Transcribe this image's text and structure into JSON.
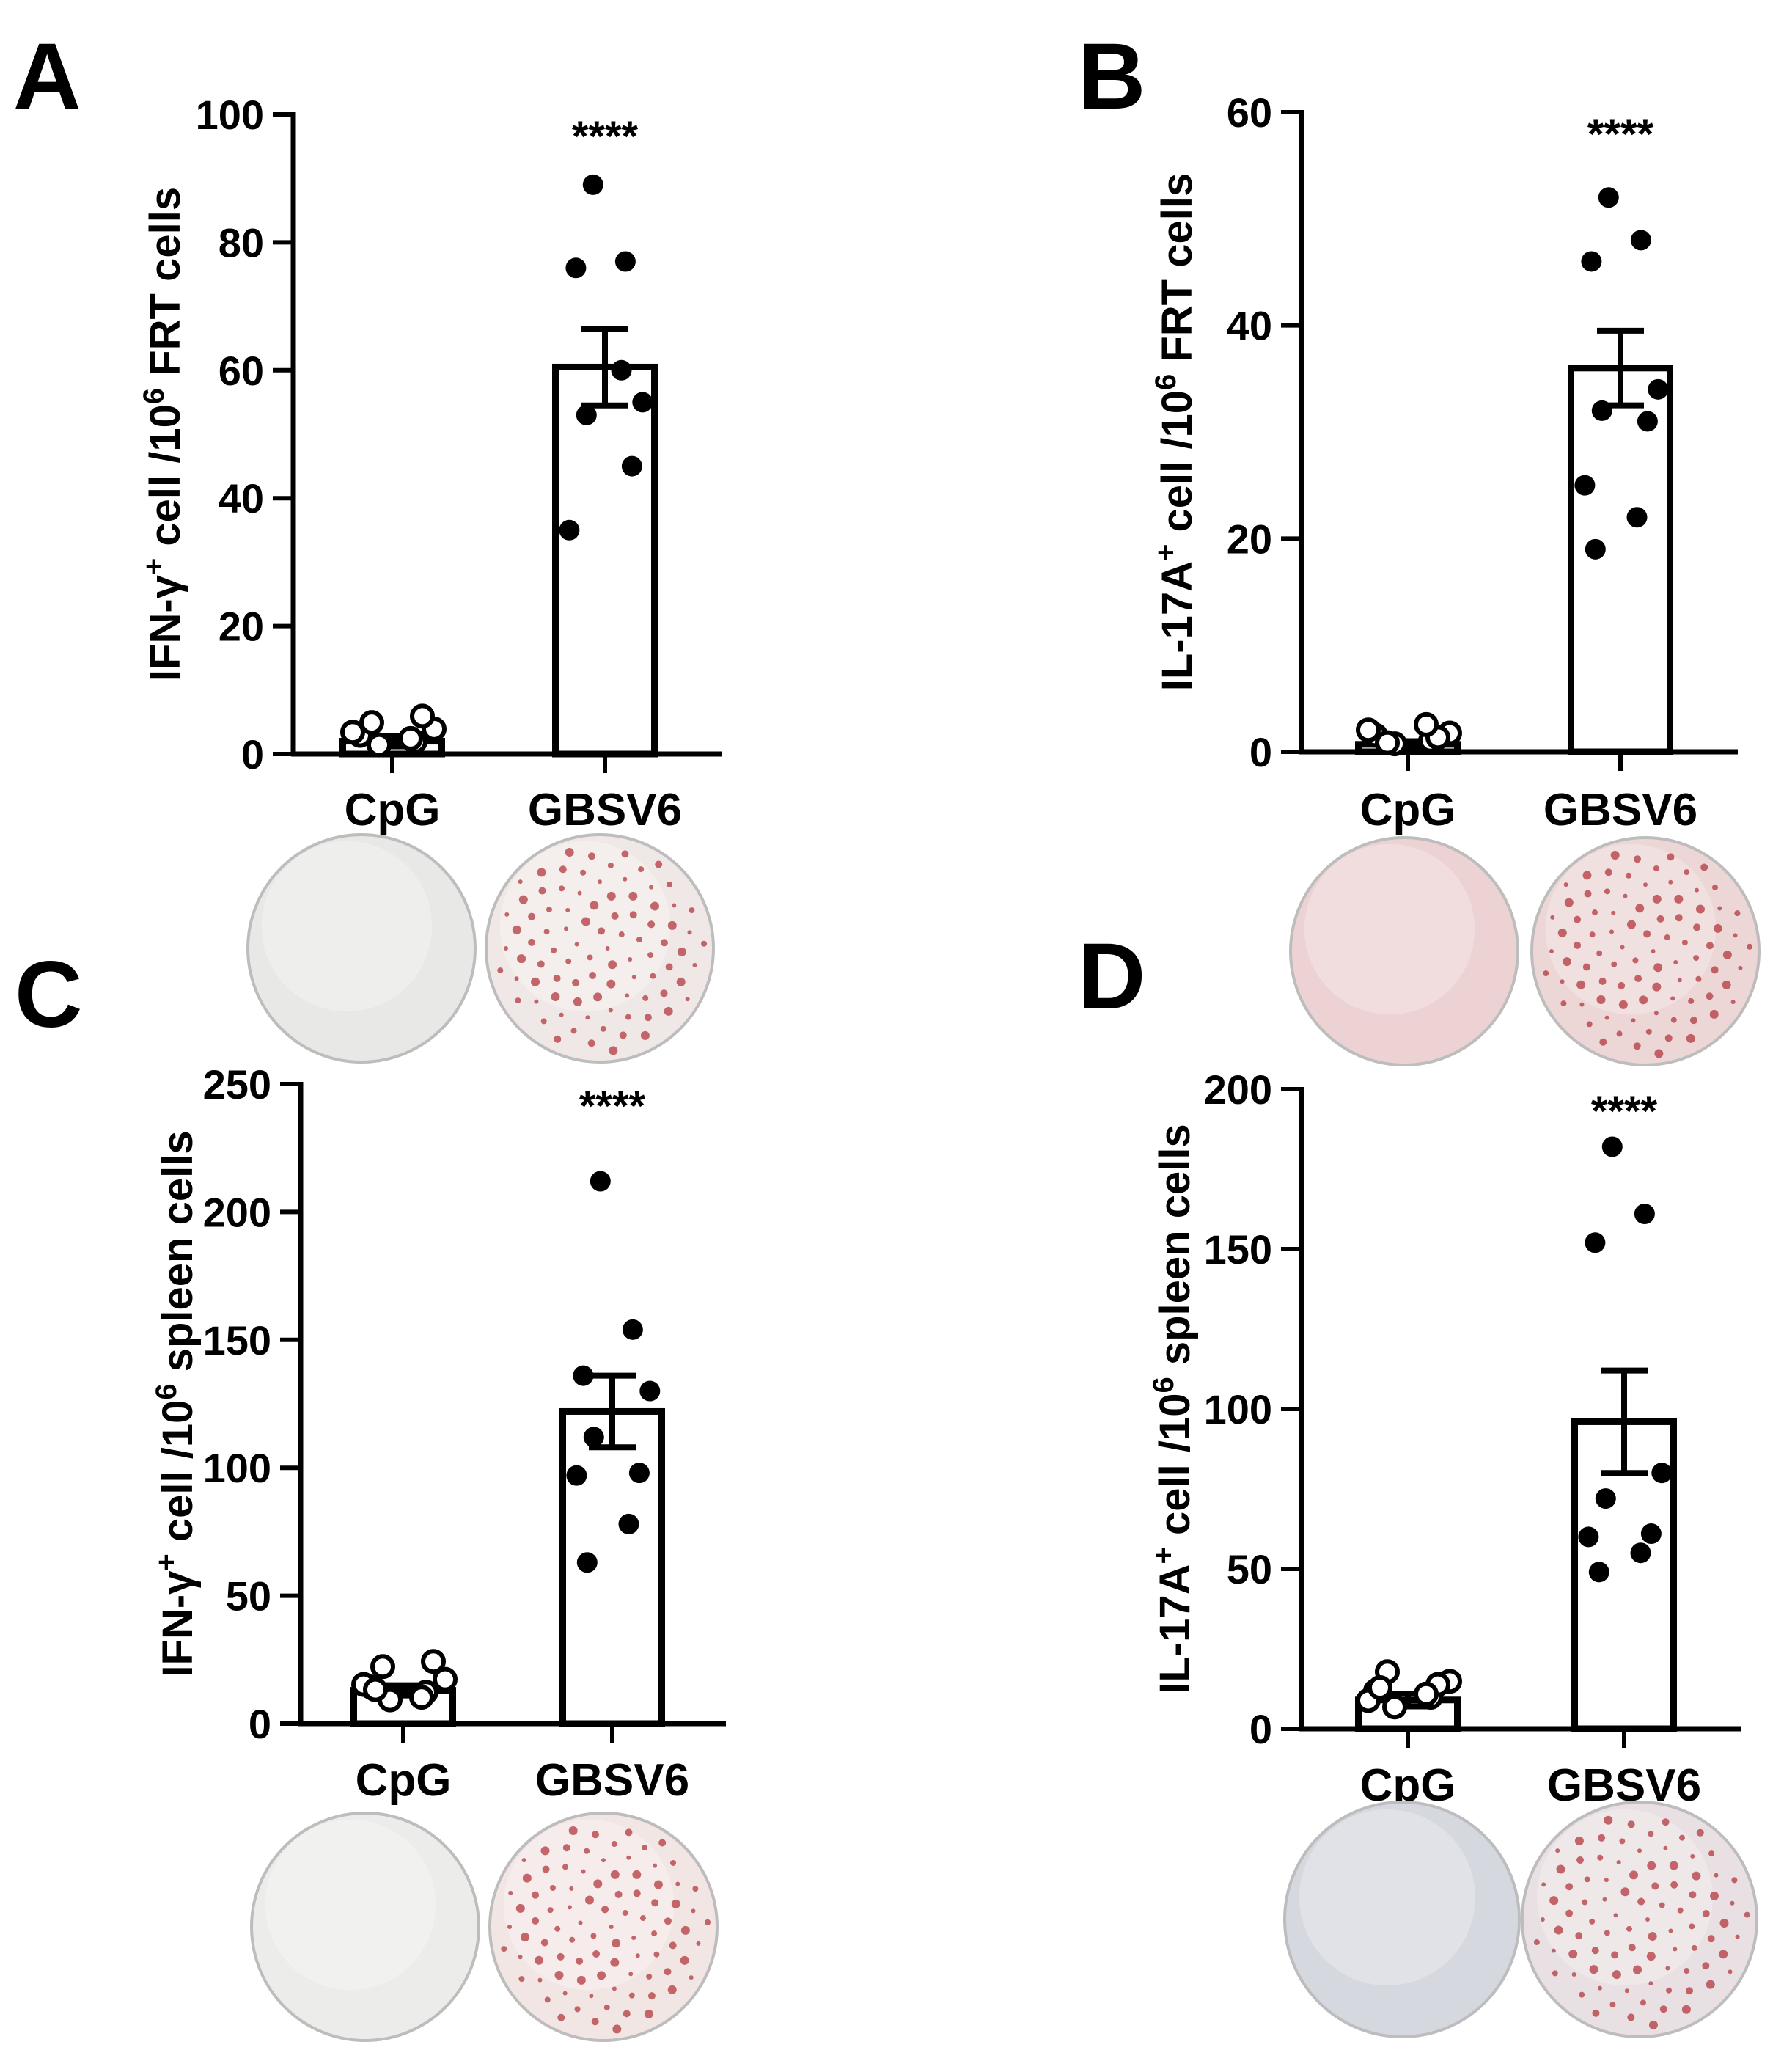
{
  "chart_data": [
    {
      "panel": "A",
      "type": "bar",
      "ylabel": "IFN-γ⁺ cell /10⁶ FRT cells",
      "ylabel_parts": {
        "pre": "IFN-γ",
        "sup1": "+",
        "mid": " cell /10",
        "sup2": "6",
        "post": " FRT cells"
      },
      "ylim": [
        0,
        100
      ],
      "yticks": [
        0,
        20,
        40,
        60,
        80,
        100
      ],
      "categories": [
        "CpG",
        "GBSV6"
      ],
      "values": [
        2,
        60.5
      ],
      "sem": [
        0.8,
        6
      ],
      "points": [
        [
          0.5,
          1,
          2,
          3,
          4,
          5,
          2.5,
          1.5
        ],
        [
          89,
          77,
          76,
          55,
          53,
          45,
          35,
          60
        ]
      ],
      "significance": "****",
      "image_colors": [
        "#e8e8e6",
        "#f0e8e6"
      ]
    },
    {
      "panel": "B",
      "type": "bar",
      "ylabel": "IL-17A⁺ cell /10⁶ FRT cells",
      "ylabel_parts": {
        "pre": "IL-17A",
        "sup1": "+",
        "mid": " cell /10",
        "sup2": "6",
        "post": " FRT cells"
      },
      "ylim": [
        0,
        60
      ],
      "yticks": [
        0,
        20,
        40,
        60
      ],
      "categories": [
        "CpG",
        "GBSV6"
      ],
      "values": [
        0.7,
        36
      ],
      "sem": [
        0.3,
        3.5
      ],
      "points": [
        [
          0.2,
          0.5,
          1,
          1.2,
          0.3,
          0.8,
          1.5,
          2
        ],
        [
          52,
          48,
          46,
          34,
          32,
          31,
          25,
          22,
          19
        ]
      ],
      "significance": "****",
      "image_colors": [
        "#ecd2d2",
        "#ecd6d6"
      ]
    },
    {
      "panel": "C",
      "type": "bar",
      "ylabel": "IFN-γ⁺ cell /10⁶ spleen cells",
      "ylabel_parts": {
        "pre": "IFN-γ",
        "sup1": "+",
        "mid": " cell /10",
        "sup2": "6",
        "post": " spleen cells"
      },
      "ylim": [
        0,
        250
      ],
      "yticks": [
        0,
        50,
        100,
        150,
        200,
        250
      ],
      "categories": [
        "CpG",
        "GBSV6"
      ],
      "values": [
        13,
        122
      ],
      "sem": [
        2,
        14
      ],
      "points": [
        [
          7,
          10,
          12,
          15,
          20,
          22,
          13,
          8,
          11
        ],
        [
          212,
          154,
          136,
          130,
          112,
          98,
          97,
          78,
          63
        ]
      ],
      "significance": "****",
      "image_colors": [
        "#ececea",
        "#f2e6e4"
      ]
    },
    {
      "panel": "D",
      "type": "bar",
      "ylabel": "IL-17A⁺ cell /10⁶ spleen cells",
      "ylabel_parts": {
        "pre": "IL-17A",
        "sup1": "+",
        "mid": " cell /10",
        "sup2": "6",
        "post": " spleen cells"
      },
      "ylim": [
        0,
        200
      ],
      "yticks": [
        0,
        50,
        100,
        150,
        200
      ],
      "categories": [
        "CpG",
        "GBSV6"
      ],
      "values": [
        9,
        96
      ],
      "sem": [
        2,
        16
      ],
      "points": [
        [
          5,
          8,
          10,
          13,
          16,
          12,
          7,
          9,
          11
        ],
        [
          182,
          161,
          152,
          80,
          72,
          61,
          60,
          55,
          49
        ]
      ],
      "significance": "****",
      "image_colors": [
        "#d6d8e0",
        "#e8e0e2"
      ]
    }
  ]
}
